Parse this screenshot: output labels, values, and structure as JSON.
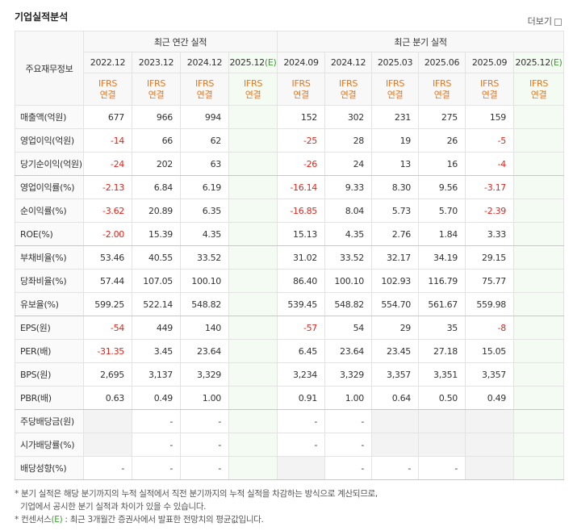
{
  "header": {
    "title": "기업실적분석",
    "more": "더보기"
  },
  "table": {
    "corner": "주요재무정보",
    "groups": [
      {
        "label": "최근 연간 실적",
        "span": 4
      },
      {
        "label": "최근 분기 실적",
        "span": 6
      }
    ],
    "columns": [
      {
        "period": "2022.12",
        "standard": "IFRS",
        "scope": "연결"
      },
      {
        "period": "2023.12",
        "standard": "IFRS",
        "scope": "연결"
      },
      {
        "period": "2024.12",
        "standard": "IFRS",
        "scope": "연결"
      },
      {
        "period": "2025.12",
        "estimate": "(E)",
        "standard": "IFRS",
        "scope": "연결"
      },
      {
        "period": "2024.09",
        "standard": "IFRS",
        "scope": "연결"
      },
      {
        "period": "2024.12",
        "standard": "IFRS",
        "scope": "연결"
      },
      {
        "period": "2025.03",
        "standard": "IFRS",
        "scope": "연결"
      },
      {
        "period": "2025.06",
        "standard": "IFRS",
        "scope": "연결"
      },
      {
        "period": "2025.09",
        "standard": "IFRS",
        "scope": "연결"
      },
      {
        "period": "2025.12",
        "estimate": "(E)",
        "standard": "IFRS",
        "scope": "연결"
      }
    ],
    "rows": [
      {
        "label": "매출액(억원)",
        "values": [
          "677",
          "966",
          "994",
          null,
          "152",
          "302",
          "231",
          "275",
          "159",
          null
        ]
      },
      {
        "label": "영업이익(억원)",
        "values": [
          "-14",
          "66",
          "62",
          null,
          "-25",
          "28",
          "19",
          "26",
          "-5",
          null
        ]
      },
      {
        "label": "당기순이익(억원)",
        "values": [
          "-24",
          "202",
          "63",
          null,
          "-26",
          "24",
          "13",
          "16",
          "-4",
          null
        ]
      },
      {
        "label": "영업이익률(%)",
        "values": [
          "-2.13",
          "6.84",
          "6.19",
          null,
          "-16.14",
          "9.33",
          "8.30",
          "9.56",
          "-3.17",
          null
        ]
      },
      {
        "label": "순이익률(%)",
        "values": [
          "-3.62",
          "20.89",
          "6.35",
          null,
          "-16.85",
          "8.04",
          "5.73",
          "5.70",
          "-2.39",
          null
        ]
      },
      {
        "label": "ROE(%)",
        "values": [
          "-2.00",
          "15.39",
          "4.35",
          null,
          "15.13",
          "4.35",
          "2.76",
          "1.84",
          "3.33",
          null
        ]
      },
      {
        "label": "부채비율(%)",
        "values": [
          "53.46",
          "40.55",
          "33.52",
          null,
          "31.02",
          "33.52",
          "32.17",
          "34.19",
          "29.15",
          null
        ]
      },
      {
        "label": "당좌비율(%)",
        "values": [
          "57.44",
          "107.05",
          "100.10",
          null,
          "86.40",
          "100.10",
          "102.93",
          "116.79",
          "75.77",
          null
        ]
      },
      {
        "label": "유보율(%)",
        "values": [
          "599.25",
          "522.14",
          "548.82",
          null,
          "539.45",
          "548.82",
          "554.70",
          "561.67",
          "559.98",
          null
        ]
      },
      {
        "label": "EPS(원)",
        "values": [
          "-54",
          "449",
          "140",
          null,
          "-57",
          "54",
          "29",
          "35",
          "-8",
          null
        ]
      },
      {
        "label": "PER(배)",
        "values": [
          "-31.35",
          "3.45",
          "23.64",
          null,
          "6.45",
          "23.64",
          "23.45",
          "27.18",
          "15.05",
          null
        ]
      },
      {
        "label": "BPS(원)",
        "values": [
          "2,695",
          "3,137",
          "3,329",
          null,
          "3,234",
          "3,329",
          "3,357",
          "3,351",
          "3,357",
          null
        ]
      },
      {
        "label": "PBR(배)",
        "values": [
          "0.63",
          "0.49",
          "1.00",
          null,
          "0.91",
          "1.00",
          "0.64",
          "0.50",
          "0.49",
          null
        ]
      },
      {
        "label": "주당배당금(원)",
        "values": [
          null,
          "-",
          "-",
          null,
          "-",
          "-",
          null,
          null,
          null,
          null
        ]
      },
      {
        "label": "시가배당률(%)",
        "values": [
          null,
          "-",
          "-",
          null,
          "-",
          "-",
          null,
          null,
          null,
          null
        ]
      },
      {
        "label": "배당성향(%)",
        "values": [
          "-",
          "-",
          "-",
          null,
          null,
          "-",
          "-",
          "-",
          null,
          null
        ]
      }
    ]
  },
  "notes": [
    {
      "parts": [
        "* 분기 실적은 해당 분기까지의 누적 실적에서 직전 분기까지의 누적 실적을 차감하는 방식으로 계산되므로,",
        "기업에서 공시한 분기 실적과 차이가 있을 수 있습니다."
      ]
    },
    {
      "parts": [
        "* 컨센서스",
        "(E)",
        " : 최근 3개월간 증권사에서 발표한 전망치의 평균값입니다."
      ]
    }
  ]
}
